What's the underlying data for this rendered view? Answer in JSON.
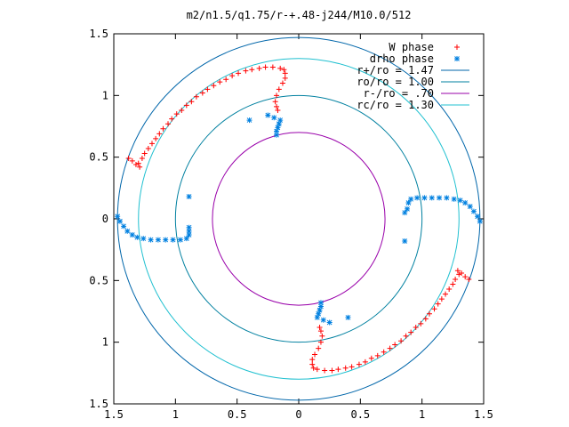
{
  "chart_data": {
    "type": "scatter",
    "title": "m2/n1.5/q1.75/r-+.48-j244/M10.0/512",
    "xlim": [
      -1.5,
      1.5
    ],
    "ylim": [
      -1.5,
      1.5
    ],
    "x_ticks": [
      {
        "value": -1.5,
        "label": "1.5"
      },
      {
        "value": -1.0,
        "label": "1"
      },
      {
        "value": -0.5,
        "label": "0.5"
      },
      {
        "value": 0,
        "label": "0"
      },
      {
        "value": 0.5,
        "label": "0.5"
      },
      {
        "value": 1.0,
        "label": "1"
      },
      {
        "value": 1.5,
        "label": "1.5"
      }
    ],
    "y_ticks": [
      {
        "value": 1.5,
        "label": "1.5"
      },
      {
        "value": 1.0,
        "label": "1"
      },
      {
        "value": 0.5,
        "label": "0.5"
      },
      {
        "value": 0,
        "label": "0"
      },
      {
        "value": -0.5,
        "label": "0.5"
      },
      {
        "value": -1.0,
        "label": "1"
      },
      {
        "value": -1.5,
        "label": "1.5"
      }
    ],
    "legend_position": "top-right",
    "circles": [
      {
        "name": "r+/ro = 1.47",
        "radius": 1.47,
        "color": "#0066aa"
      },
      {
        "name": "ro/ro = 1.00",
        "radius": 1.0,
        "color": "#0080a0"
      },
      {
        "name": "r-/ro =  .70",
        "radius": 0.7,
        "color": "#9900aa"
      },
      {
        "name": "rc/ro = 1.30",
        "radius": 1.3,
        "color": "#20c0d0"
      }
    ],
    "series": [
      {
        "name": "W phase",
        "marker": "plus",
        "color": "#ff0000",
        "points": [
          [
            -1.38,
            0.49
          ],
          [
            -1.35,
            0.47
          ],
          [
            -1.32,
            0.44
          ],
          [
            -1.29,
            0.42
          ],
          [
            -1.3,
            0.45
          ],
          [
            -1.27,
            0.49
          ],
          [
            -1.25,
            0.53
          ],
          [
            -1.22,
            0.57
          ],
          [
            -1.19,
            0.61
          ],
          [
            -1.16,
            0.65
          ],
          [
            -1.13,
            0.69
          ],
          [
            -1.1,
            0.73
          ],
          [
            -1.06,
            0.77
          ],
          [
            -1.03,
            0.81
          ],
          [
            -0.99,
            0.85
          ],
          [
            -0.95,
            0.88
          ],
          [
            -0.91,
            0.92
          ],
          [
            -0.87,
            0.95
          ],
          [
            -0.83,
            0.99
          ],
          [
            -0.78,
            1.02
          ],
          [
            -0.74,
            1.05
          ],
          [
            -0.69,
            1.08
          ],
          [
            -0.64,
            1.11
          ],
          [
            -0.59,
            1.13
          ],
          [
            -0.54,
            1.16
          ],
          [
            -0.49,
            1.18
          ],
          [
            -0.43,
            1.2
          ],
          [
            -0.38,
            1.21
          ],
          [
            -0.32,
            1.22
          ],
          [
            -0.27,
            1.23
          ],
          [
            -0.21,
            1.23
          ],
          [
            -0.15,
            1.22
          ],
          [
            -0.12,
            1.21
          ],
          [
            -0.11,
            1.18
          ],
          [
            -0.11,
            1.14
          ],
          [
            -0.13,
            1.1
          ],
          [
            -0.16,
            1.05
          ],
          [
            -0.18,
            1.0
          ],
          [
            -0.19,
            0.95
          ],
          [
            -0.18,
            0.91
          ],
          [
            -0.17,
            0.88
          ],
          [
            1.38,
            -0.49
          ],
          [
            1.35,
            -0.47
          ],
          [
            1.32,
            -0.44
          ],
          [
            1.29,
            -0.42
          ],
          [
            1.3,
            -0.45
          ],
          [
            1.27,
            -0.49
          ],
          [
            1.25,
            -0.53
          ],
          [
            1.22,
            -0.57
          ],
          [
            1.19,
            -0.61
          ],
          [
            1.16,
            -0.65
          ],
          [
            1.13,
            -0.69
          ],
          [
            1.1,
            -0.73
          ],
          [
            1.06,
            -0.77
          ],
          [
            1.03,
            -0.81
          ],
          [
            0.99,
            -0.85
          ],
          [
            0.95,
            -0.88
          ],
          [
            0.91,
            -0.92
          ],
          [
            0.87,
            -0.95
          ],
          [
            0.83,
            -0.99
          ],
          [
            0.78,
            -1.02
          ],
          [
            0.74,
            -1.05
          ],
          [
            0.69,
            -1.08
          ],
          [
            0.64,
            -1.11
          ],
          [
            0.59,
            -1.13
          ],
          [
            0.54,
            -1.16
          ],
          [
            0.49,
            -1.18
          ],
          [
            0.43,
            -1.2
          ],
          [
            0.38,
            -1.21
          ],
          [
            0.32,
            -1.22
          ],
          [
            0.27,
            -1.23
          ],
          [
            0.21,
            -1.23
          ],
          [
            0.15,
            -1.22
          ],
          [
            0.12,
            -1.21
          ],
          [
            0.11,
            -1.18
          ],
          [
            0.11,
            -1.14
          ],
          [
            0.13,
            -1.1
          ],
          [
            0.16,
            -1.05
          ],
          [
            0.18,
            -1.0
          ],
          [
            0.19,
            -0.95
          ],
          [
            0.18,
            -0.91
          ],
          [
            0.17,
            -0.88
          ]
        ]
      },
      {
        "name": "drho phase",
        "marker": "star",
        "color": "#0080e0",
        "points": [
          [
            -1.47,
            0.02
          ],
          [
            -1.45,
            -0.02
          ],
          [
            -1.42,
            -0.06
          ],
          [
            -1.39,
            -0.1
          ],
          [
            -1.35,
            -0.13
          ],
          [
            -1.31,
            -0.15
          ],
          [
            -1.26,
            -0.16
          ],
          [
            -1.2,
            -0.17
          ],
          [
            -1.14,
            -0.17
          ],
          [
            -1.08,
            -0.17
          ],
          [
            -1.02,
            -0.17
          ],
          [
            -0.96,
            -0.17
          ],
          [
            -0.91,
            -0.16
          ],
          [
            -0.89,
            -0.13
          ],
          [
            -0.89,
            -0.1
          ],
          [
            -0.18,
            0.68
          ],
          [
            -0.18,
            0.71
          ],
          [
            -0.17,
            0.74
          ],
          [
            -0.16,
            0.77
          ],
          [
            -0.15,
            0.8
          ],
          [
            -0.2,
            0.82
          ],
          [
            -0.25,
            0.84
          ],
          [
            -0.4,
            0.8
          ],
          [
            -0.89,
            -0.07
          ],
          [
            -0.89,
            0.18
          ],
          [
            1.47,
            -0.02
          ],
          [
            1.45,
            0.02
          ],
          [
            1.42,
            0.06
          ],
          [
            1.39,
            0.1
          ],
          [
            1.35,
            0.13
          ],
          [
            1.31,
            0.15
          ],
          [
            1.26,
            0.16
          ],
          [
            1.2,
            0.17
          ],
          [
            1.14,
            0.17
          ],
          [
            1.08,
            0.17
          ],
          [
            1.02,
            0.17
          ],
          [
            0.96,
            0.17
          ],
          [
            0.91,
            0.16
          ],
          [
            0.89,
            0.13
          ],
          [
            0.88,
            0.08
          ],
          [
            0.18,
            -0.68
          ],
          [
            0.18,
            -0.71
          ],
          [
            0.17,
            -0.74
          ],
          [
            0.16,
            -0.77
          ],
          [
            0.15,
            -0.8
          ],
          [
            0.2,
            -0.82
          ],
          [
            0.25,
            -0.84
          ],
          [
            0.4,
            -0.8
          ],
          [
            0.86,
            0.05
          ],
          [
            0.86,
            -0.18
          ]
        ]
      }
    ]
  }
}
